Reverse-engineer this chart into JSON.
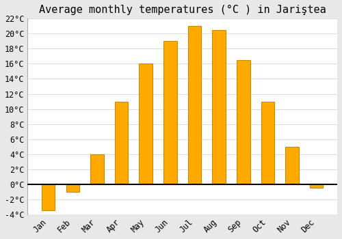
{
  "title": "Average monthly temperatures (°C ) in Jariştea",
  "months": [
    "Jan",
    "Feb",
    "Mar",
    "Apr",
    "May",
    "Jun",
    "Jul",
    "Aug",
    "Sep",
    "Oct",
    "Nov",
    "Dec"
  ],
  "values": [
    -3.5,
    -1.0,
    4.0,
    11.0,
    16.0,
    19.0,
    21.0,
    20.5,
    16.5,
    11.0,
    5.0,
    -0.5
  ],
  "bar_color": "#FFAA00",
  "bar_edge_color": "#CC8800",
  "plot_bg_color": "#ffffff",
  "figure_bg_color": "#e8e8e8",
  "grid_color": "#dddddd",
  "zero_line_color": "#000000",
  "ylim": [
    -4,
    22
  ],
  "yticks": [
    -4,
    -2,
    0,
    2,
    4,
    6,
    8,
    10,
    12,
    14,
    16,
    18,
    20,
    22
  ],
  "title_fontsize": 11,
  "tick_fontsize": 8.5,
  "bar_width": 0.55
}
